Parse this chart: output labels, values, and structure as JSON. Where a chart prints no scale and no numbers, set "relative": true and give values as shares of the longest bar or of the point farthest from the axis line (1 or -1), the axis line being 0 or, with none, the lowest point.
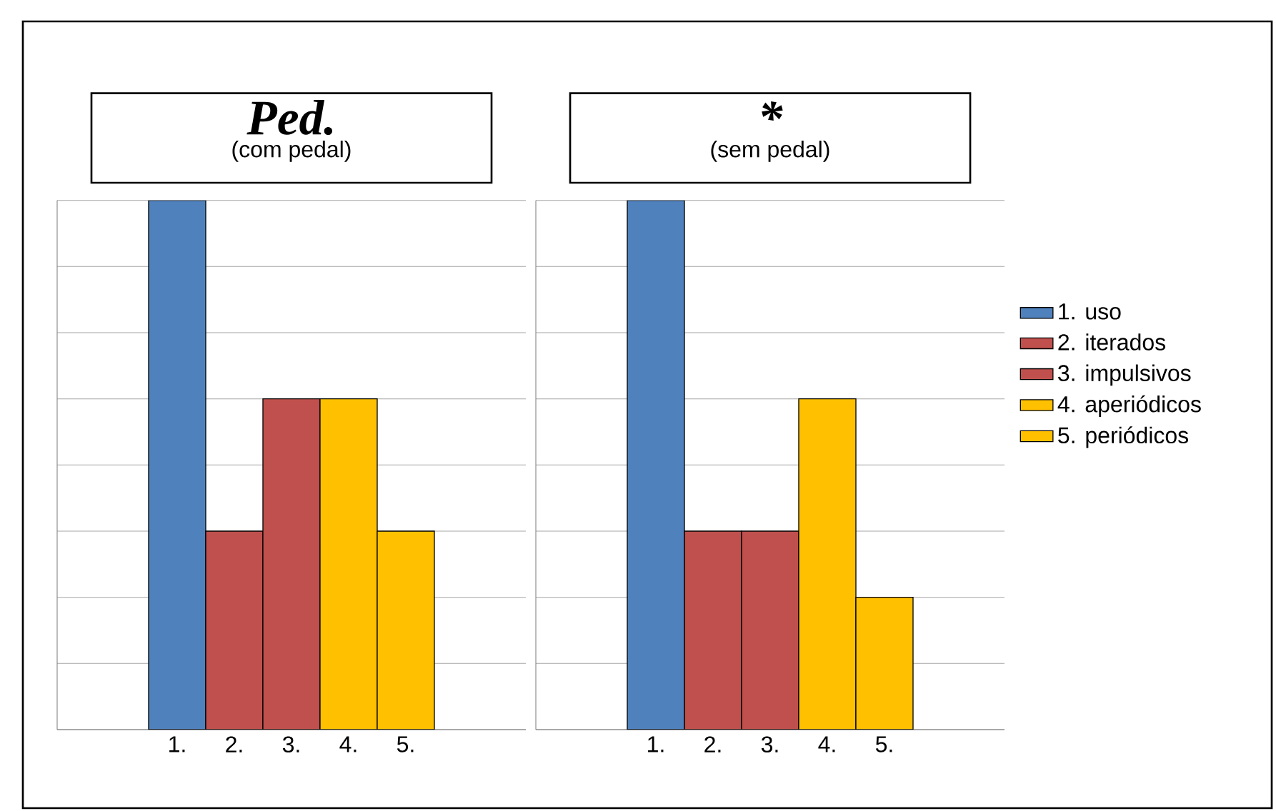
{
  "chart_data": [
    {
      "type": "bar",
      "title": "Ped.",
      "subtitle": "(com pedal)",
      "categories": [
        "1.",
        "2.",
        "3.",
        "4.",
        "5."
      ],
      "relative": true,
      "grid": "y",
      "series": [
        {
          "color": "#4f81bd",
          "values": [
            1,
            null,
            null,
            null,
            null
          ]
        },
        {
          "color": "#c0504d",
          "values": [
            null,
            0.375,
            null,
            null,
            null
          ]
        },
        {
          "color": "#c0504d",
          "values": [
            null,
            null,
            0.625,
            null,
            null
          ]
        },
        {
          "color": "#ffc000",
          "values": [
            null,
            null,
            null,
            0.625,
            null
          ]
        },
        {
          "color": "#ffc000",
          "values": [
            null,
            null,
            null,
            null,
            0.375
          ]
        }
      ]
    },
    {
      "type": "bar",
      "title": "*",
      "subtitle": "(sem pedal)",
      "categories": [
        "1.",
        "2.",
        "3.",
        "4.",
        "5."
      ],
      "relative": true,
      "grid": "y",
      "legend": "right",
      "series": [
        {
          "name": "1. uso",
          "color": "#4f81bd",
          "values": [
            1,
            null,
            null,
            null,
            null
          ]
        },
        {
          "name": "2. iterados",
          "color": "#c0504d",
          "values": [
            null,
            0.375,
            null,
            null,
            null
          ]
        },
        {
          "name": "3. impulsivos",
          "color": "#c0504d",
          "values": [
            null,
            null,
            0.375,
            null,
            null
          ]
        },
        {
          "name": "4. aperiódicos",
          "color": "#ffc000",
          "values": [
            null,
            null,
            null,
            0.625,
            null
          ]
        },
        {
          "name": "5. periódicos",
          "color": "#ffc000",
          "values": [
            null,
            null,
            null,
            null,
            0.25
          ]
        }
      ]
    }
  ]
}
